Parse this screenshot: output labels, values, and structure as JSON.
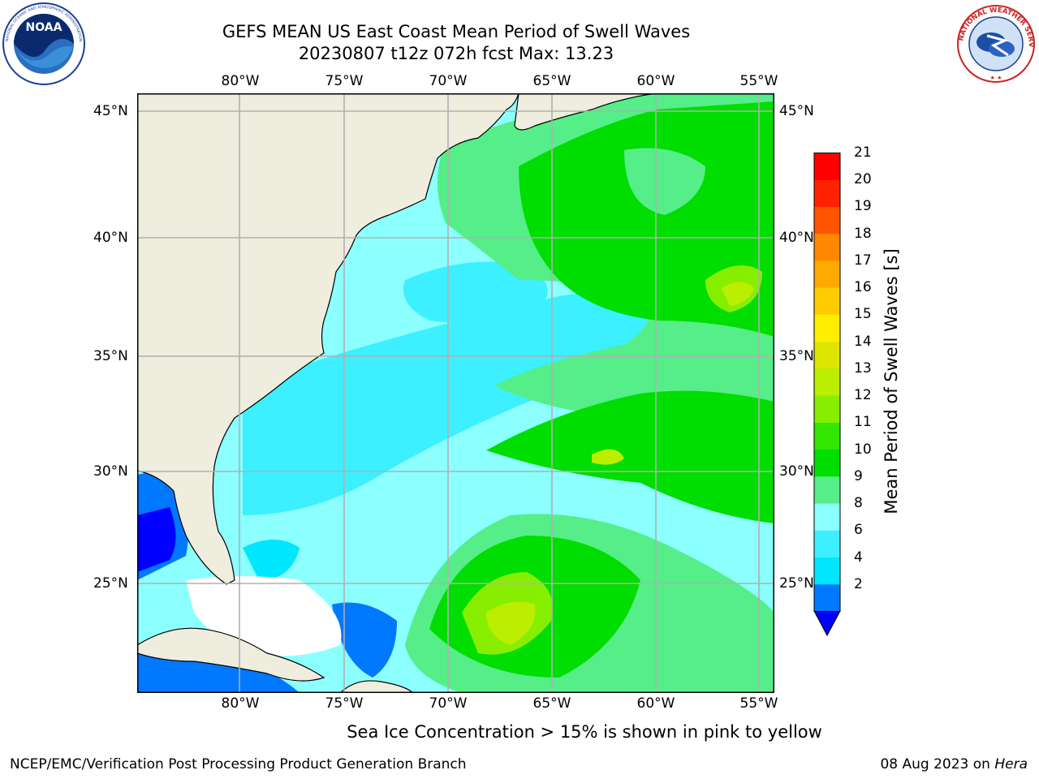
{
  "title": {
    "line1": "GEFS MEAN US East Coast Mean Period of Swell Waves",
    "line2": "20230807 t12z 072h fcst   Max: 13.23"
  },
  "logos": {
    "noaa": {
      "text": "NOAA",
      "ring_text": "NATIONAL OCEANIC AND ATMOSPHERIC ADMINISTRATION · U.S. DEPARTMENT OF COMMERCE",
      "icon": "noaa-logo"
    },
    "nws": {
      "ring_text": "NATIONAL WEATHER SERVICE",
      "icon": "nws-logo"
    }
  },
  "map": {
    "lon_labels_top": [
      "80°W",
      "75°W",
      "70°W",
      "65°W",
      "60°W",
      "55°W"
    ],
    "lon_labels_bottom": [
      "80°W",
      "75°W",
      "70°W",
      "65°W",
      "60°W",
      "55°W"
    ],
    "lat_labels_left": [
      "45°N",
      "40°N",
      "35°N",
      "30°N",
      "25°N"
    ],
    "lat_labels_right": [
      "45°N",
      "40°N",
      "35°N",
      "30°N",
      "25°N"
    ],
    "colors": {
      "land": "#efedde",
      "no_data": "#ffffff",
      "grid": "#b0b0b0",
      "coast": "#000000"
    }
  },
  "colorbar": {
    "label": "Mean Period of Swell Waves [s]",
    "ticks": [
      "21",
      "20",
      "19",
      "18",
      "17",
      "16",
      "15",
      "14",
      "13",
      "12",
      "11",
      "10",
      "9",
      "8",
      "6",
      "4",
      "2"
    ],
    "colors": [
      "#0000ff",
      "#0078ff",
      "#00e6ff",
      "#3cf0ff",
      "#8cffff",
      "#55ee88",
      "#00dd00",
      "#33e600",
      "#88ee00",
      "#bbee00",
      "#dde600",
      "#ffee00",
      "#ffcc00",
      "#ffaa00",
      "#ff8800",
      "#ff5500",
      "#ff2200",
      "#ff0000"
    ]
  },
  "caption": "Sea Ice Concentration > 15% is shown in pink to yellow",
  "footer": {
    "credit": "NCEP/EMC/Verification Post Processing Product Generation Branch",
    "date": "08 Aug 2023 on ",
    "machine": "Hera"
  }
}
